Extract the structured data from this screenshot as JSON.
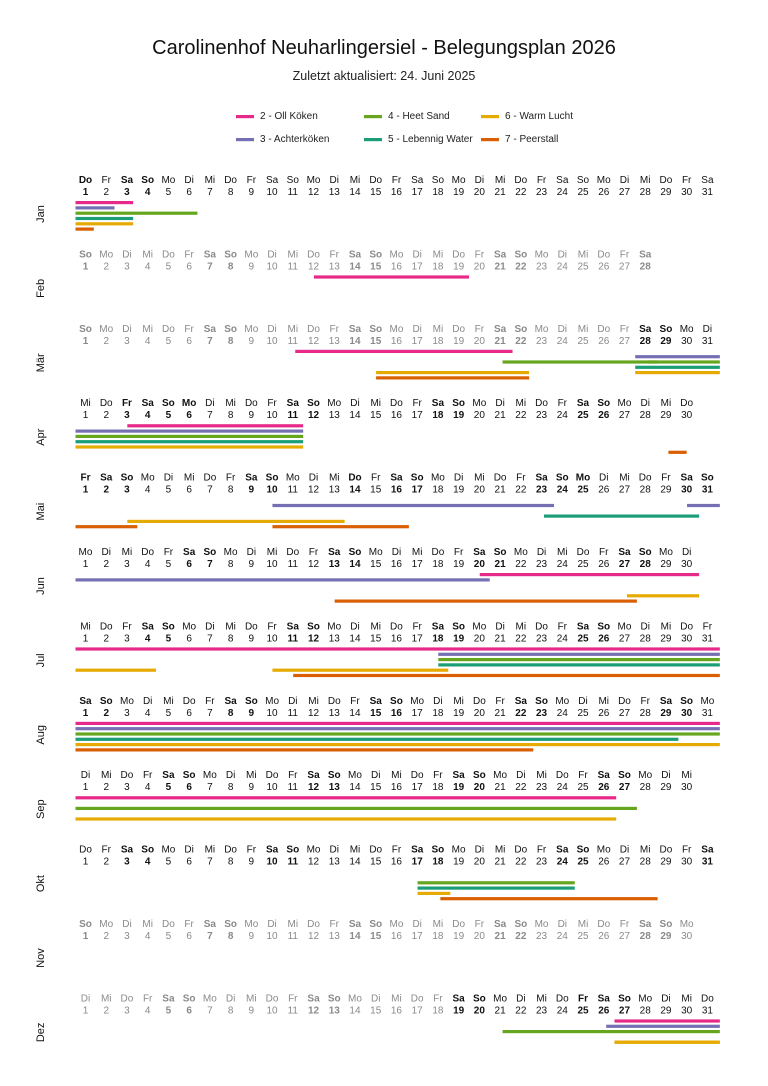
{
  "title": "Carolinenhof Neuharlingersiel - Belegungsplan 2026",
  "subtitle": "Zuletzt aktualisiert: 24. Juni 2025",
  "chart_data": {
    "type": "gantt",
    "year": 2026,
    "weekday_abbr": [
      "Mo",
      "Di",
      "Mi",
      "Do",
      "Fr",
      "Sa",
      "So"
    ],
    "months": [
      {
        "label": "Jan",
        "days": 31,
        "first_weekday": 3,
        "bold_days": [
          1,
          3,
          4
        ],
        "dim_days": []
      },
      {
        "label": "Feb",
        "days": 28,
        "first_weekday": 6,
        "bold_days": [],
        "dim_days": "all"
      },
      {
        "label": "Mär",
        "days": 31,
        "first_weekday": 6,
        "bold_days": [
          28,
          29
        ],
        "dim_days": [
          1,
          2,
          3,
          4,
          5,
          6,
          7,
          8,
          9,
          10,
          11,
          12,
          13,
          14,
          15,
          16,
          17,
          18,
          19,
          20,
          21,
          22,
          23,
          24,
          25,
          26,
          27
        ]
      },
      {
        "label": "Apr",
        "days": 30,
        "first_weekday": 2,
        "bold_days": [
          3,
          4,
          5,
          6,
          11,
          12,
          18,
          19,
          25,
          26
        ],
        "dim_days": []
      },
      {
        "label": "Mai",
        "days": 31,
        "first_weekday": 4,
        "bold_days": [
          1,
          2,
          3,
          9,
          10,
          14,
          16,
          17,
          23,
          24,
          25,
          30,
          31
        ],
        "dim_days": []
      },
      {
        "label": "Jun",
        "days": 30,
        "first_weekday": 0,
        "bold_days": [
          6,
          7,
          13,
          14,
          20,
          21,
          27,
          28
        ],
        "dim_days": []
      },
      {
        "label": "Jul",
        "days": 31,
        "first_weekday": 2,
        "bold_days": [
          4,
          5,
          11,
          12,
          18,
          19,
          25,
          26
        ],
        "dim_days": []
      },
      {
        "label": "Aug",
        "days": 31,
        "first_weekday": 5,
        "bold_days": [
          1,
          2,
          8,
          9,
          15,
          16,
          22,
          23,
          29,
          30
        ],
        "dim_days": []
      },
      {
        "label": "Sep",
        "days": 30,
        "first_weekday": 1,
        "bold_days": [
          5,
          6,
          12,
          13,
          19,
          20,
          26,
          27
        ],
        "dim_days": []
      },
      {
        "label": "Okt",
        "days": 31,
        "first_weekday": 3,
        "bold_days": [
          3,
          4,
          10,
          11,
          17,
          18,
          24,
          25,
          31
        ],
        "dim_days": []
      },
      {
        "label": "Nov",
        "days": 30,
        "first_weekday": 6,
        "bold_days": [],
        "dim_days": "all"
      },
      {
        "label": "Dez",
        "days": 31,
        "first_weekday": 1,
        "bold_days": [
          19,
          20,
          25,
          26,
          27
        ],
        "dim_days": [
          1,
          2,
          3,
          4,
          5,
          6,
          7,
          8,
          9,
          10,
          11,
          12,
          13,
          14,
          15,
          16,
          17,
          18
        ]
      }
    ],
    "series": [
      {
        "name": "2 - Oll Köken",
        "color": "#e7298a",
        "slot": 0
      },
      {
        "name": "3 - Achterköken",
        "color": "#7570b3",
        "slot": 1
      },
      {
        "name": "4 - Heet Sand",
        "color": "#66a61e",
        "slot": 2
      },
      {
        "name": "5 - Lebennig Water",
        "color": "#1b9e77",
        "slot": 3
      },
      {
        "name": "6 - Warm Lucht",
        "color": "#e6ab02",
        "slot": 4
      },
      {
        "name": "7 - Peerstall",
        "color": "#d95f02",
        "slot": 5
      }
    ],
    "legend_position": "top",
    "bookings": [
      {
        "series": 0,
        "month": 1,
        "start": 1,
        "end": 3.3
      },
      {
        "series": 1,
        "month": 1,
        "start": 1,
        "end": 2.4
      },
      {
        "series": 2,
        "month": 1,
        "start": 1,
        "end": 6.4
      },
      {
        "series": 3,
        "month": 1,
        "start": 1,
        "end": 3.3
      },
      {
        "series": 4,
        "month": 1,
        "start": 1,
        "end": 3.3
      },
      {
        "series": 5,
        "month": 1,
        "start": 1,
        "end": 1.4
      },
      {
        "series": 0,
        "month": 2,
        "start": 12.5,
        "end": 19.5
      },
      {
        "series": 0,
        "month": 3,
        "start": 11.6,
        "end": 21.6
      },
      {
        "series": 1,
        "month": 3,
        "start": 28.0,
        "end": 31.6
      },
      {
        "series": 2,
        "month": 3,
        "start": 21.6,
        "end": 28.6
      },
      {
        "series": 2,
        "month": 3,
        "start": 28.6,
        "end": 31.6
      },
      {
        "series": 3,
        "month": 3,
        "start": 28.0,
        "end": 31.6
      },
      {
        "series": 4,
        "month": 3,
        "start": 15.5,
        "end": 22.4
      },
      {
        "series": 4,
        "month": 3,
        "start": 28.0,
        "end": 31.6
      },
      {
        "series": 5,
        "month": 3,
        "start": 15.5,
        "end": 22.4
      },
      {
        "series": 0,
        "month": 4,
        "start": 3.5,
        "end": 11.5
      },
      {
        "series": 1,
        "month": 4,
        "start": 1,
        "end": 11.5
      },
      {
        "series": 2,
        "month": 4,
        "start": 1,
        "end": 11.5
      },
      {
        "series": 3,
        "month": 4,
        "start": 1,
        "end": 11.5
      },
      {
        "series": 4,
        "month": 4,
        "start": 1,
        "end": 11.5
      },
      {
        "series": 5,
        "month": 4,
        "start": 29.6,
        "end": 30.0
      },
      {
        "series": 1,
        "month": 5,
        "start": 10.5,
        "end": 23.6
      },
      {
        "series": 1,
        "month": 5,
        "start": 30.5,
        "end": 31.6
      },
      {
        "series": 3,
        "month": 5,
        "start": 23.6,
        "end": 30.6
      },
      {
        "series": 4,
        "month": 5,
        "start": 3.5,
        "end": 13.5
      },
      {
        "series": 5,
        "month": 5,
        "start": 1,
        "end": 3.5
      },
      {
        "series": 5,
        "month": 5,
        "start": 10.5,
        "end": 16.6
      },
      {
        "series": 0,
        "month": 6,
        "start": 20.5,
        "end": 30.6
      },
      {
        "series": 1,
        "month": 6,
        "start": 1,
        "end": 20.5
      },
      {
        "series": 4,
        "month": 6,
        "start": 27.6,
        "end": 30.6
      },
      {
        "series": 5,
        "month": 6,
        "start": 13.5,
        "end": 27.6
      },
      {
        "series": 0,
        "month": 7,
        "start": 1,
        "end": 31.6
      },
      {
        "series": 1,
        "month": 7,
        "start": 18.5,
        "end": 31.6
      },
      {
        "series": 2,
        "month": 7,
        "start": 18.5,
        "end": 31.6
      },
      {
        "series": 3,
        "month": 7,
        "start": 18.5,
        "end": 31.6
      },
      {
        "series": 4,
        "month": 7,
        "start": 1,
        "end": 4.4
      },
      {
        "series": 4,
        "month": 7,
        "start": 10.5,
        "end": 18.5
      },
      {
        "series": 5,
        "month": 7,
        "start": 11.5,
        "end": 31.6
      },
      {
        "series": 0,
        "month": 8,
        "start": 1,
        "end": 31.6
      },
      {
        "series": 1,
        "month": 8,
        "start": 1,
        "end": 31.6
      },
      {
        "series": 2,
        "month": 8,
        "start": 1,
        "end": 31.6
      },
      {
        "series": 3,
        "month": 8,
        "start": 1,
        "end": 29.6
      },
      {
        "series": 4,
        "month": 8,
        "start": 1,
        "end": 31.6
      },
      {
        "series": 5,
        "month": 8,
        "start": 1,
        "end": 22.6
      },
      {
        "series": 0,
        "month": 9,
        "start": 1,
        "end": 26.6
      },
      {
        "series": 2,
        "month": 9,
        "start": 1,
        "end": 27.6
      },
      {
        "series": 4,
        "month": 9,
        "start": 1,
        "end": 26.6
      },
      {
        "series": 2,
        "month": 10,
        "start": 17.5,
        "end": 24.6
      },
      {
        "series": 3,
        "month": 10,
        "start": 17.5,
        "end": 24.6
      },
      {
        "series": 4,
        "month": 10,
        "start": 17.5,
        "end": 18.6
      },
      {
        "series": 5,
        "month": 10,
        "start": 18.6,
        "end": 28.6
      },
      {
        "series": 0,
        "month": 12,
        "start": 27.0,
        "end": 31.6
      },
      {
        "series": 1,
        "month": 12,
        "start": 26.6,
        "end": 31.6
      },
      {
        "series": 2,
        "month": 12,
        "start": 21.6,
        "end": 31.6
      },
      {
        "series": 4,
        "month": 12,
        "start": 27.0,
        "end": 31.6
      },
      {
        "series": 4,
        "month": 12,
        "start": 27.0,
        "end": 31.6
      }
    ]
  }
}
